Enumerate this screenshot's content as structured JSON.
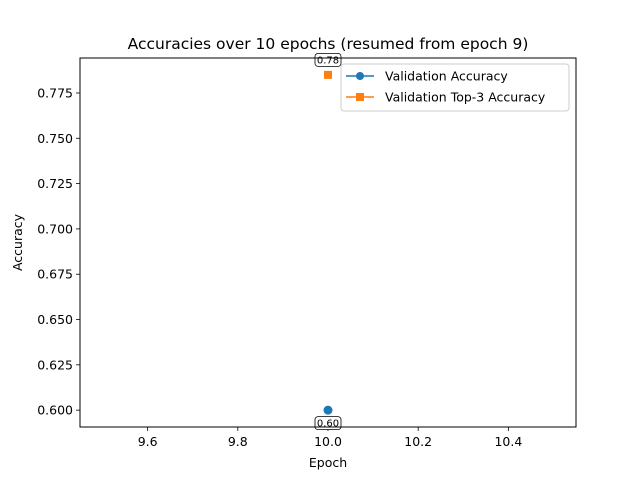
{
  "chart_data": {
    "type": "line",
    "title": "Accuracies over 10 epochs (resumed from epoch 9)",
    "xlabel": "Epoch",
    "ylabel": "Accuracy",
    "xlim": [
      9.45,
      10.55
    ],
    "ylim": [
      0.5907,
      0.7943
    ],
    "xticks": [
      9.6,
      9.8,
      10.0,
      10.2,
      10.4
    ],
    "xtick_labels": [
      "9.6",
      "9.8",
      "10.0",
      "10.2",
      "10.4"
    ],
    "yticks": [
      0.6,
      0.625,
      0.65,
      0.675,
      0.7,
      0.725,
      0.75,
      0.775
    ],
    "ytick_labels": [
      "0.600",
      "0.625",
      "0.650",
      "0.675",
      "0.700",
      "0.725",
      "0.750",
      "0.775"
    ],
    "grid": false,
    "legend_position": "upper right",
    "series": [
      {
        "name": "Validation Accuracy",
        "color": "#1f77b4",
        "marker": "circle",
        "x": [
          10
        ],
        "y": [
          0.6
        ],
        "annotations": [
          "0.60"
        ],
        "annotation_position": "below"
      },
      {
        "name": "Validation Top-3 Accuracy",
        "color": "#ff7f0e",
        "marker": "square",
        "x": [
          10
        ],
        "y": [
          0.785
        ],
        "annotations": [
          "0.78"
        ],
        "annotation_position": "above"
      }
    ]
  }
}
